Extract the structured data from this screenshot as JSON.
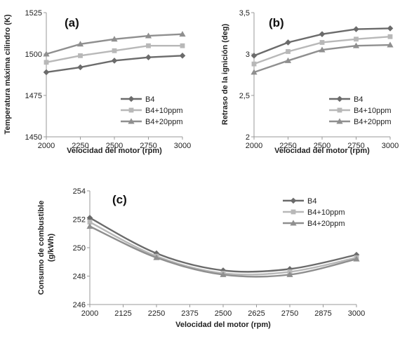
{
  "chart_data": [
    {
      "type": "line",
      "panel_label": "(a)",
      "title": "",
      "xlabel": "Velocidad del motor (rpm)",
      "ylabel": "Temperatura máxima cilindro (K)",
      "x": [
        2000,
        2250,
        2500,
        2750,
        3000
      ],
      "x_ticks": [
        "2000",
        "2250",
        "2500",
        "2750",
        "3000"
      ],
      "xlim": [
        2000,
        3000
      ],
      "y_ticks": [
        "1450",
        "1475",
        "1500",
        "1525"
      ],
      "ylim": [
        1450,
        1525
      ],
      "grid": false,
      "legend_position": "bottom-right",
      "series": [
        {
          "name": "B4",
          "marker": "diamond",
          "color": "#6b6b6b",
          "values": [
            1489,
            1492,
            1496,
            1498,
            1499
          ]
        },
        {
          "name": "B4+10ppm",
          "marker": "square",
          "color": "#b8b8b8",
          "values": [
            1495,
            1499,
            1502,
            1505,
            1505
          ]
        },
        {
          "name": "B4+20ppm",
          "marker": "triangle",
          "color": "#8f8f8f",
          "values": [
            1500,
            1506,
            1509,
            1511,
            1512
          ]
        }
      ]
    },
    {
      "type": "line",
      "panel_label": "(b)",
      "title": "",
      "xlabel": "Velocidad del motor (rpm)",
      "ylabel": "Retraso de la ignición (deg)",
      "x": [
        2000,
        2250,
        2500,
        2750,
        3000
      ],
      "x_ticks": [
        "2000",
        "2250",
        "2500",
        "2750",
        "3000"
      ],
      "xlim": [
        2000,
        3000
      ],
      "y_ticks": [
        "2",
        "2,5",
        "3",
        "3,5"
      ],
      "ylim": [
        2,
        3.5
      ],
      "grid": false,
      "legend_position": "bottom-right",
      "series": [
        {
          "name": "B4",
          "marker": "diamond",
          "color": "#6b6b6b",
          "values": [
            2.98,
            3.14,
            3.24,
            3.3,
            3.31
          ]
        },
        {
          "name": "B4+10ppm",
          "marker": "square",
          "color": "#b8b8b8",
          "values": [
            2.88,
            3.03,
            3.14,
            3.18,
            3.21
          ]
        },
        {
          "name": "B4+20ppm",
          "marker": "triangle",
          "color": "#8f8f8f",
          "values": [
            2.78,
            2.92,
            3.05,
            3.1,
            3.11
          ]
        }
      ]
    },
    {
      "type": "line",
      "panel_label": "(c)",
      "title": "",
      "xlabel": "Velocidad del motor (rpm)",
      "ylabel": "Consumo de combustible (g/kWh)",
      "x": [
        2000,
        2250,
        2500,
        2750,
        3000
      ],
      "x_ticks": [
        "2000",
        "2125",
        "2250",
        "2375",
        "2500",
        "2625",
        "2750",
        "2875",
        "3000"
      ],
      "xlim": [
        2000,
        3000
      ],
      "y_ticks": [
        "246",
        "248",
        "250",
        "252",
        "254"
      ],
      "ylim": [
        246,
        254
      ],
      "grid": false,
      "smooth": true,
      "legend_position": "top-right",
      "series": [
        {
          "name": "B4",
          "marker": "diamond",
          "color": "#6b6b6b",
          "values": [
            252.1,
            249.6,
            248.4,
            248.5,
            249.5
          ]
        },
        {
          "name": "B4+10ppm",
          "marker": "square",
          "color": "#b8b8b8",
          "values": [
            251.8,
            249.4,
            248.2,
            248.3,
            249.3
          ]
        },
        {
          "name": "B4+20ppm",
          "marker": "triangle",
          "color": "#8f8f8f",
          "values": [
            251.5,
            249.3,
            248.1,
            248.1,
            249.2
          ]
        }
      ]
    }
  ]
}
